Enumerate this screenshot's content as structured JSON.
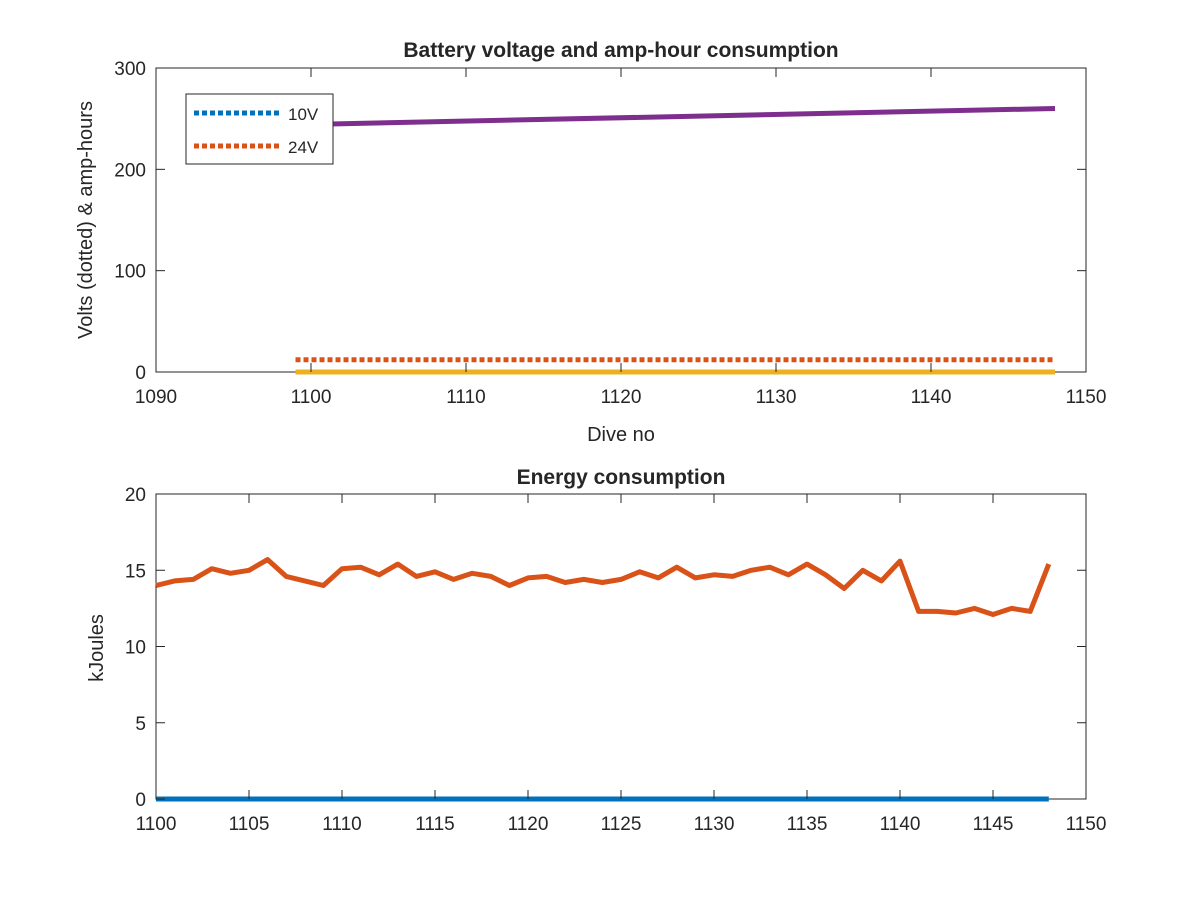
{
  "chart_data": [
    {
      "type": "line",
      "title": "Battery voltage and amp-hour consumption",
      "xlabel": "Dive no",
      "ylabel": "Volts (dotted) & amp-hours",
      "xlim": [
        1090,
        1150
      ],
      "ylim": [
        0,
        300
      ],
      "xticks": [
        1090,
        1100,
        1110,
        1120,
        1130,
        1140,
        1150
      ],
      "yticks": [
        0,
        100,
        200,
        300
      ],
      "grid": false,
      "legend_location": "top-left",
      "series": [
        {
          "name": "10V",
          "style": "dotted",
          "color": "#0072BD",
          "x": [
            1099,
            1148
          ],
          "y": [
            0,
            0
          ]
        },
        {
          "name": "24V",
          "style": "dotted",
          "color": "#D95319",
          "x": [
            1099,
            1148
          ],
          "y": [
            12,
            12
          ]
        },
        {
          "style": "solid",
          "color": "#EDB120",
          "x": [
            1099,
            1148
          ],
          "y": [
            0,
            0
          ]
        },
        {
          "style": "solid",
          "color": "#7E2F8E",
          "x": [
            1099,
            1148
          ],
          "y": [
            244,
            260
          ]
        }
      ]
    },
    {
      "type": "line",
      "title": "Energy consumption",
      "xlabel": "",
      "ylabel": "kJoules",
      "xlim": [
        1100,
        1150
      ],
      "ylim": [
        0,
        20
      ],
      "xticks": [
        1100,
        1105,
        1110,
        1115,
        1120,
        1125,
        1130,
        1135,
        1140,
        1145,
        1150
      ],
      "yticks": [
        0,
        5,
        10,
        15,
        20
      ],
      "grid": false,
      "series": [
        {
          "style": "solid",
          "color": "#0072BD",
          "x": [
            1100,
            1148
          ],
          "y": [
            0,
            0
          ]
        },
        {
          "style": "solid",
          "color": "#D95319",
          "x": [
            1100,
            1101,
            1102,
            1103,
            1104,
            1105,
            1106,
            1107,
            1108,
            1109,
            1110,
            1111,
            1112,
            1113,
            1114,
            1115,
            1116,
            1117,
            1118,
            1119,
            1120,
            1121,
            1122,
            1123,
            1124,
            1125,
            1126,
            1127,
            1128,
            1129,
            1130,
            1131,
            1132,
            1133,
            1134,
            1135,
            1136,
            1137,
            1138,
            1139,
            1140,
            1141,
            1142,
            1143,
            1144,
            1145,
            1146,
            1147,
            1148
          ],
          "y": [
            14.0,
            14.3,
            14.4,
            15.1,
            14.8,
            15.0,
            15.7,
            14.6,
            14.3,
            14.0,
            15.1,
            15.2,
            14.7,
            15.4,
            14.6,
            14.9,
            14.4,
            14.8,
            14.6,
            14.0,
            14.5,
            14.6,
            14.2,
            14.4,
            14.2,
            14.4,
            14.9,
            14.5,
            15.2,
            14.5,
            14.7,
            14.6,
            15.0,
            15.2,
            14.7,
            15.4,
            14.7,
            13.8,
            15.0,
            14.3,
            15.6,
            12.3,
            12.3,
            12.2,
            12.5,
            12.1,
            12.5,
            12.3,
            15.4
          ]
        }
      ]
    }
  ]
}
